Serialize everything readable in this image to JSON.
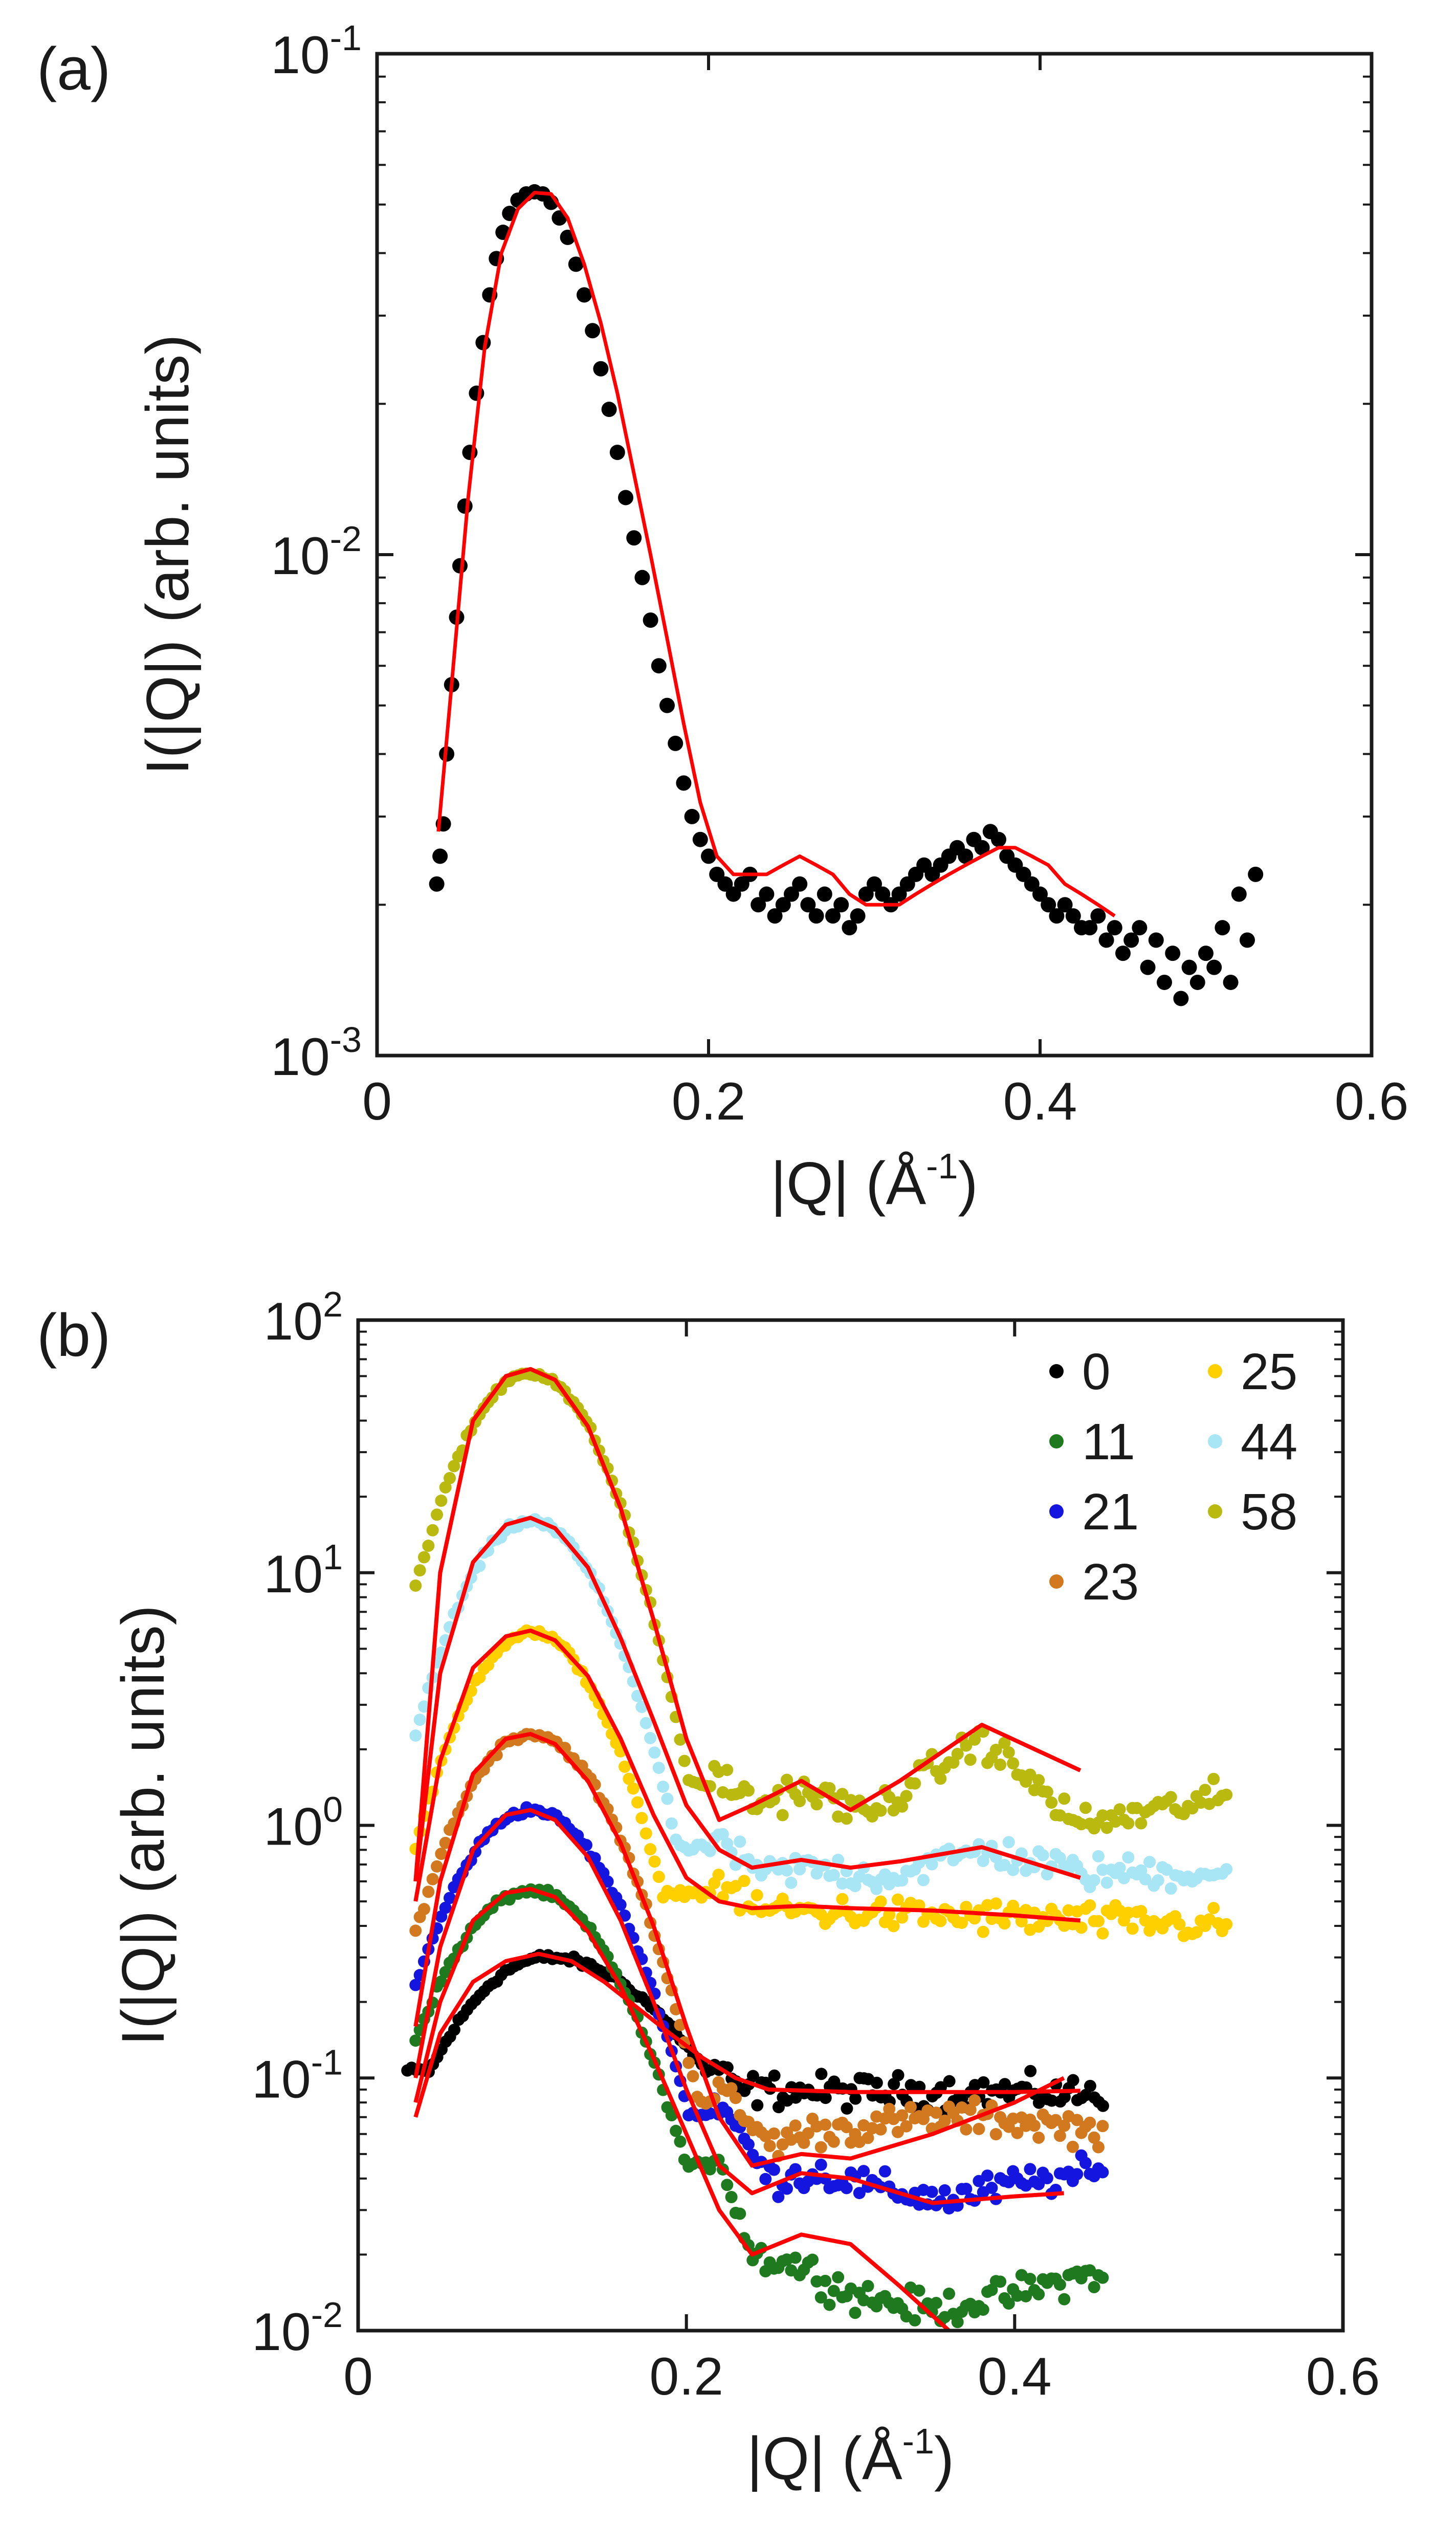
{
  "figure_colors": {
    "axis": "#1a1a1a",
    "fit": "#ff0000"
  },
  "chart_data": [
    {
      "panel": "(a)",
      "type": "scatter",
      "xlabel": "|Q| (Å^-1)",
      "ylabel": "I(|Q|) (arb. units)",
      "xlim": [
        0,
        0.6
      ],
      "ylim": [
        0.001,
        0.1
      ],
      "yscale": "log",
      "xticks": [
        "0",
        "0.2",
        "0.4",
        "0.6"
      ],
      "yticks": [
        {
          "value": 0.001,
          "base": "10",
          "exp": "-3"
        },
        {
          "value": 0.01,
          "base": "10",
          "exp": "-2"
        },
        {
          "value": 0.1,
          "base": "10",
          "exp": "-1"
        }
      ],
      "series": [
        {
          "name": "data",
          "color": "#000000",
          "marker": "dot",
          "x": [
            0.036,
            0.038,
            0.04,
            0.042,
            0.045,
            0.048,
            0.05,
            0.053,
            0.056,
            0.06,
            0.064,
            0.068,
            0.072,
            0.076,
            0.08,
            0.085,
            0.09,
            0.095,
            0.1,
            0.105,
            0.11,
            0.115,
            0.12,
            0.125,
            0.13,
            0.135,
            0.14,
            0.145,
            0.15,
            0.155,
            0.16,
            0.165,
            0.17,
            0.175,
            0.18,
            0.185,
            0.19,
            0.195,
            0.2,
            0.205,
            0.21,
            0.215,
            0.22,
            0.225,
            0.23,
            0.235,
            0.24,
            0.245,
            0.25,
            0.255,
            0.26,
            0.265,
            0.27,
            0.275,
            0.28,
            0.285,
            0.29,
            0.295,
            0.3,
            0.305,
            0.31,
            0.315,
            0.32,
            0.325,
            0.33,
            0.335,
            0.34,
            0.345,
            0.35,
            0.355,
            0.36,
            0.365,
            0.37,
            0.375,
            0.38,
            0.385,
            0.39,
            0.395,
            0.4,
            0.405,
            0.41,
            0.415,
            0.42,
            0.425,
            0.43,
            0.435,
            0.44,
            0.445,
            0.45,
            0.455,
            0.46,
            0.465,
            0.47,
            0.475,
            0.48,
            0.485,
            0.49,
            0.495,
            0.5,
            0.505,
            0.51,
            0.515,
            0.52,
            0.525,
            0.53
          ],
          "y": [
            0.0022,
            0.0025,
            0.0029,
            0.004,
            0.0055,
            0.0075,
            0.0095,
            0.0125,
            0.016,
            0.021,
            0.0265,
            0.033,
            0.039,
            0.044,
            0.048,
            0.051,
            0.0525,
            0.053,
            0.0525,
            0.0505,
            0.047,
            0.043,
            0.038,
            0.033,
            0.028,
            0.0235,
            0.0195,
            0.016,
            0.013,
            0.0108,
            0.009,
            0.0074,
            0.006,
            0.005,
            0.0042,
            0.0035,
            0.003,
            0.0027,
            0.0025,
            0.0023,
            0.0022,
            0.0021,
            0.0022,
            0.0023,
            0.002,
            0.0021,
            0.0019,
            0.002,
            0.0021,
            0.0022,
            0.002,
            0.0019,
            0.0021,
            0.0019,
            0.002,
            0.0018,
            0.0019,
            0.0021,
            0.0022,
            0.0021,
            0.002,
            0.0021,
            0.0022,
            0.0023,
            0.0024,
            0.0023,
            0.0024,
            0.0025,
            0.0026,
            0.0025,
            0.0027,
            0.0026,
            0.0028,
            0.0027,
            0.0025,
            0.0024,
            0.0023,
            0.0022,
            0.0021,
            0.002,
            0.0019,
            0.002,
            0.0019,
            0.0018,
            0.0018,
            0.0019,
            0.0017,
            0.0018,
            0.0016,
            0.0017,
            0.0018,
            0.0015,
            0.0017,
            0.0014,
            0.0016,
            0.0013,
            0.0015,
            0.0014,
            0.0016,
            0.0015,
            0.0018,
            0.0014,
            0.0021,
            0.0017,
            0.0023
          ]
        },
        {
          "name": "fit",
          "color": "#ff0000",
          "marker": "line",
          "x": [
            0.037,
            0.045,
            0.055,
            0.065,
            0.075,
            0.085,
            0.095,
            0.105,
            0.115,
            0.125,
            0.135,
            0.145,
            0.155,
            0.165,
            0.175,
            0.185,
            0.195,
            0.205,
            0.215,
            0.225,
            0.235,
            0.245,
            0.255,
            0.265,
            0.275,
            0.285,
            0.295,
            0.305,
            0.315,
            0.325,
            0.335,
            0.345,
            0.355,
            0.365,
            0.375,
            0.385,
            0.395,
            0.405,
            0.415,
            0.425,
            0.435,
            0.445
          ],
          "y": [
            0.0028,
            0.0055,
            0.013,
            0.026,
            0.04,
            0.049,
            0.0528,
            0.0525,
            0.047,
            0.038,
            0.029,
            0.021,
            0.0145,
            0.01,
            0.0068,
            0.0046,
            0.0032,
            0.0025,
            0.0023,
            0.0023,
            0.0023,
            0.0024,
            0.0025,
            0.0024,
            0.0023,
            0.0021,
            0.002,
            0.002,
            0.002,
            0.0021,
            0.0022,
            0.0023,
            0.0024,
            0.0025,
            0.0026,
            0.0026,
            0.0025,
            0.0024,
            0.0022,
            0.0021,
            0.002,
            0.0019
          ]
        }
      ]
    },
    {
      "panel": "(b)",
      "type": "scatter",
      "xlabel": "|Q| (Å^-1)",
      "ylabel": "I(|Q|) (arb. units)",
      "xlim": [
        0,
        0.6
      ],
      "ylim": [
        0.01,
        100
      ],
      "yscale": "log",
      "xticks": [
        "0",
        "0.2",
        "0.4",
        "0.6"
      ],
      "yticks": [
        {
          "value": 0.01,
          "base": "10",
          "exp": "-2"
        },
        {
          "value": 0.1,
          "base": "10",
          "exp": "-1"
        },
        {
          "value": 1,
          "base": "10",
          "exp": "0"
        },
        {
          "value": 10,
          "base": "10",
          "exp": "1"
        },
        {
          "value": 100,
          "base": "10",
          "exp": "2"
        }
      ],
      "legend_position": "top-right",
      "series": [
        {
          "name": "0",
          "color": "#000000",
          "peak": 0.3,
          "peak_q": 0.115,
          "width_lo": 0.07,
          "width_hi": 0.095,
          "q_start": 0.03,
          "q_min": 0.012,
          "plateau": [
            [
              0.21,
              0.13
            ],
            [
              0.23,
              0.09
            ],
            [
              0.3,
              0.088
            ],
            [
              0.4,
              0.088
            ],
            [
              0.455,
              0.085
            ]
          ],
          "q_end": 0.455
        },
        {
          "name": "11",
          "color": "#1f7a1f",
          "peak": 0.55,
          "peak_q": 0.105,
          "width_lo": 0.06,
          "width_hi": 0.06,
          "q_start": 0.035,
          "q_min": 0.08,
          "plateau": [
            [
              0.22,
              0.05
            ],
            [
              0.24,
              0.02
            ],
            [
              0.27,
              0.018
            ],
            [
              0.3,
              0.014
            ],
            [
              0.35,
              0.012
            ],
            [
              0.4,
              0.014
            ],
            [
              0.45,
              0.017
            ]
          ],
          "q_end": 0.455
        },
        {
          "name": "21",
          "color": "#1515e0",
          "peak": 1.15,
          "peak_q": 0.105,
          "width_lo": 0.055,
          "width_hi": 0.058,
          "q_start": 0.035,
          "q_min": 0.1,
          "plateau": [
            [
              0.22,
              0.08
            ],
            [
              0.25,
              0.04
            ],
            [
              0.28,
              0.042
            ],
            [
              0.32,
              0.036
            ],
            [
              0.36,
              0.033
            ],
            [
              0.4,
              0.038
            ],
            [
              0.45,
              0.042
            ]
          ],
          "q_end": 0.455
        },
        {
          "name": "23",
          "color": "#d2781e",
          "peak": 2.3,
          "peak_q": 0.105,
          "width_lo": 0.052,
          "width_hi": 0.056,
          "q_start": 0.035,
          "q_min": 0.13,
          "plateau": [
            [
              0.22,
              0.09
            ],
            [
              0.25,
              0.055
            ],
            [
              0.28,
              0.062
            ],
            [
              0.32,
              0.065
            ],
            [
              0.36,
              0.07
            ],
            [
              0.4,
              0.068
            ],
            [
              0.45,
              0.062
            ]
          ],
          "q_end": 0.455
        },
        {
          "name": "25",
          "color": "#ffd000",
          "peak": 5.8,
          "peak_q": 0.105,
          "width_lo": 0.05,
          "width_hi": 0.052,
          "q_start": 0.035,
          "q_min": 0.7,
          "plateau": [
            [
              0.22,
              0.6
            ],
            [
              0.24,
              0.47
            ],
            [
              0.3,
              0.45
            ],
            [
              0.4,
              0.43
            ],
            [
              0.53,
              0.4
            ]
          ],
          "q_end": 0.53
        },
        {
          "name": "44",
          "color": "#a8e6f5",
          "peak": 16,
          "peak_q": 0.105,
          "width_lo": 0.05,
          "width_hi": 0.052,
          "q_start": 0.035,
          "q_min": 0.75,
          "plateau": [
            [
              0.22,
              0.9
            ],
            [
              0.24,
              0.65
            ],
            [
              0.28,
              0.68
            ],
            [
              0.32,
              0.62
            ],
            [
              0.38,
              0.8
            ],
            [
              0.44,
              0.65
            ],
            [
              0.53,
              0.65
            ]
          ],
          "q_end": 0.53
        },
        {
          "name": "58",
          "color": "#b9b90f",
          "peak": 62,
          "peak_q": 0.105,
          "width_lo": 0.05,
          "width_hi": 0.05,
          "q_start": 0.035,
          "q_min": 0.65,
          "plateau": [
            [
              0.22,
              1.6
            ],
            [
              0.24,
              1.2
            ],
            [
              0.27,
              1.4
            ],
            [
              0.31,
              1.1
            ],
            [
              0.38,
              2.2
            ],
            [
              0.44,
              1.0
            ],
            [
              0.53,
              1.3
            ]
          ],
          "q_end": 0.53
        }
      ],
      "fits": [
        {
          "name": "fit-0",
          "color": "#ff0000",
          "x": [
            0.035,
            0.05,
            0.07,
            0.09,
            0.11,
            0.13,
            0.15,
            0.17,
            0.19,
            0.21,
            0.23,
            0.25,
            0.3,
            0.35,
            0.4,
            0.44
          ],
          "y": [
            0.07,
            0.15,
            0.24,
            0.29,
            0.31,
            0.29,
            0.24,
            0.19,
            0.15,
            0.12,
            0.1,
            0.09,
            0.088,
            0.088,
            0.088,
            0.089
          ]
        },
        {
          "name": "fit-11",
          "color": "#ff0000",
          "x": [
            0.035,
            0.05,
            0.07,
            0.09,
            0.105,
            0.12,
            0.14,
            0.16,
            0.18,
            0.2,
            0.22,
            0.24,
            0.27,
            0.3,
            0.33,
            0.36
          ],
          "y": [
            0.08,
            0.2,
            0.42,
            0.54,
            0.56,
            0.52,
            0.38,
            0.23,
            0.12,
            0.06,
            0.03,
            0.02,
            0.024,
            0.022,
            0.015,
            0.01
          ]
        },
        {
          "name": "fit-21",
          "color": "#ff0000",
          "x": [
            0.035,
            0.05,
            0.07,
            0.09,
            0.105,
            0.12,
            0.14,
            0.16,
            0.18,
            0.2,
            0.22,
            0.24,
            0.27,
            0.3,
            0.35,
            0.4,
            0.43
          ],
          "y": [
            0.1,
            0.33,
            0.8,
            1.1,
            1.15,
            1.05,
            0.75,
            0.42,
            0.2,
            0.09,
            0.045,
            0.035,
            0.042,
            0.04,
            0.032,
            0.034,
            0.035
          ]
        },
        {
          "name": "fit-23",
          "color": "#ff0000",
          "x": [
            0.035,
            0.05,
            0.07,
            0.09,
            0.105,
            0.12,
            0.14,
            0.16,
            0.18,
            0.2,
            0.22,
            0.24,
            0.27,
            0.3,
            0.35,
            0.4,
            0.43
          ],
          "y": [
            0.16,
            0.6,
            1.6,
            2.2,
            2.3,
            2.1,
            1.5,
            0.85,
            0.4,
            0.16,
            0.07,
            0.045,
            0.05,
            0.048,
            0.06,
            0.08,
            0.1
          ]
        },
        {
          "name": "fit-25",
          "color": "#ff0000",
          "x": [
            0.035,
            0.05,
            0.07,
            0.09,
            0.105,
            0.12,
            0.14,
            0.16,
            0.18,
            0.2,
            0.22,
            0.24,
            0.27,
            0.3,
            0.35,
            0.4,
            0.44
          ],
          "y": [
            0.5,
            1.8,
            4.2,
            5.6,
            5.9,
            5.4,
            3.9,
            2.2,
            1.1,
            0.62,
            0.5,
            0.47,
            0.48,
            0.47,
            0.46,
            0.44,
            0.42
          ]
        },
        {
          "name": "fit-44",
          "color": "#ff0000",
          "x": [
            0.035,
            0.05,
            0.07,
            0.09,
            0.105,
            0.12,
            0.14,
            0.16,
            0.18,
            0.2,
            0.22,
            0.24,
            0.27,
            0.3,
            0.33,
            0.38,
            0.44
          ],
          "y": [
            0.6,
            4.0,
            11.0,
            15.5,
            16.5,
            15.0,
            10.5,
            5.5,
            2.6,
            1.2,
            0.8,
            0.68,
            0.73,
            0.68,
            0.72,
            0.82,
            0.62
          ]
        },
        {
          "name": "fit-58",
          "color": "#ff0000",
          "x": [
            0.035,
            0.05,
            0.07,
            0.09,
            0.105,
            0.12,
            0.14,
            0.16,
            0.18,
            0.2,
            0.22,
            0.24,
            0.27,
            0.3,
            0.33,
            0.38,
            0.44
          ],
          "y": [
            0.6,
            10.0,
            40.0,
            60.0,
            64.0,
            58.0,
            38.0,
            18.0,
            6.5,
            2.2,
            1.05,
            1.2,
            1.5,
            1.15,
            1.5,
            2.5,
            1.65
          ]
        }
      ],
      "legend": [
        {
          "label": "0",
          "color": "#000000",
          "col": 0,
          "row": 0
        },
        {
          "label": "11",
          "color": "#1f7a1f",
          "col": 0,
          "row": 1
        },
        {
          "label": "21",
          "color": "#1515e0",
          "col": 0,
          "row": 2
        },
        {
          "label": "23",
          "color": "#d2781e",
          "col": 0,
          "row": 3
        },
        {
          "label": "25",
          "color": "#ffd000",
          "col": 1,
          "row": 0
        },
        {
          "label": "44",
          "color": "#a8e6f5",
          "col": 1,
          "row": 1
        },
        {
          "label": "58",
          "color": "#b9b90f",
          "col": 1,
          "row": 2
        }
      ]
    }
  ]
}
